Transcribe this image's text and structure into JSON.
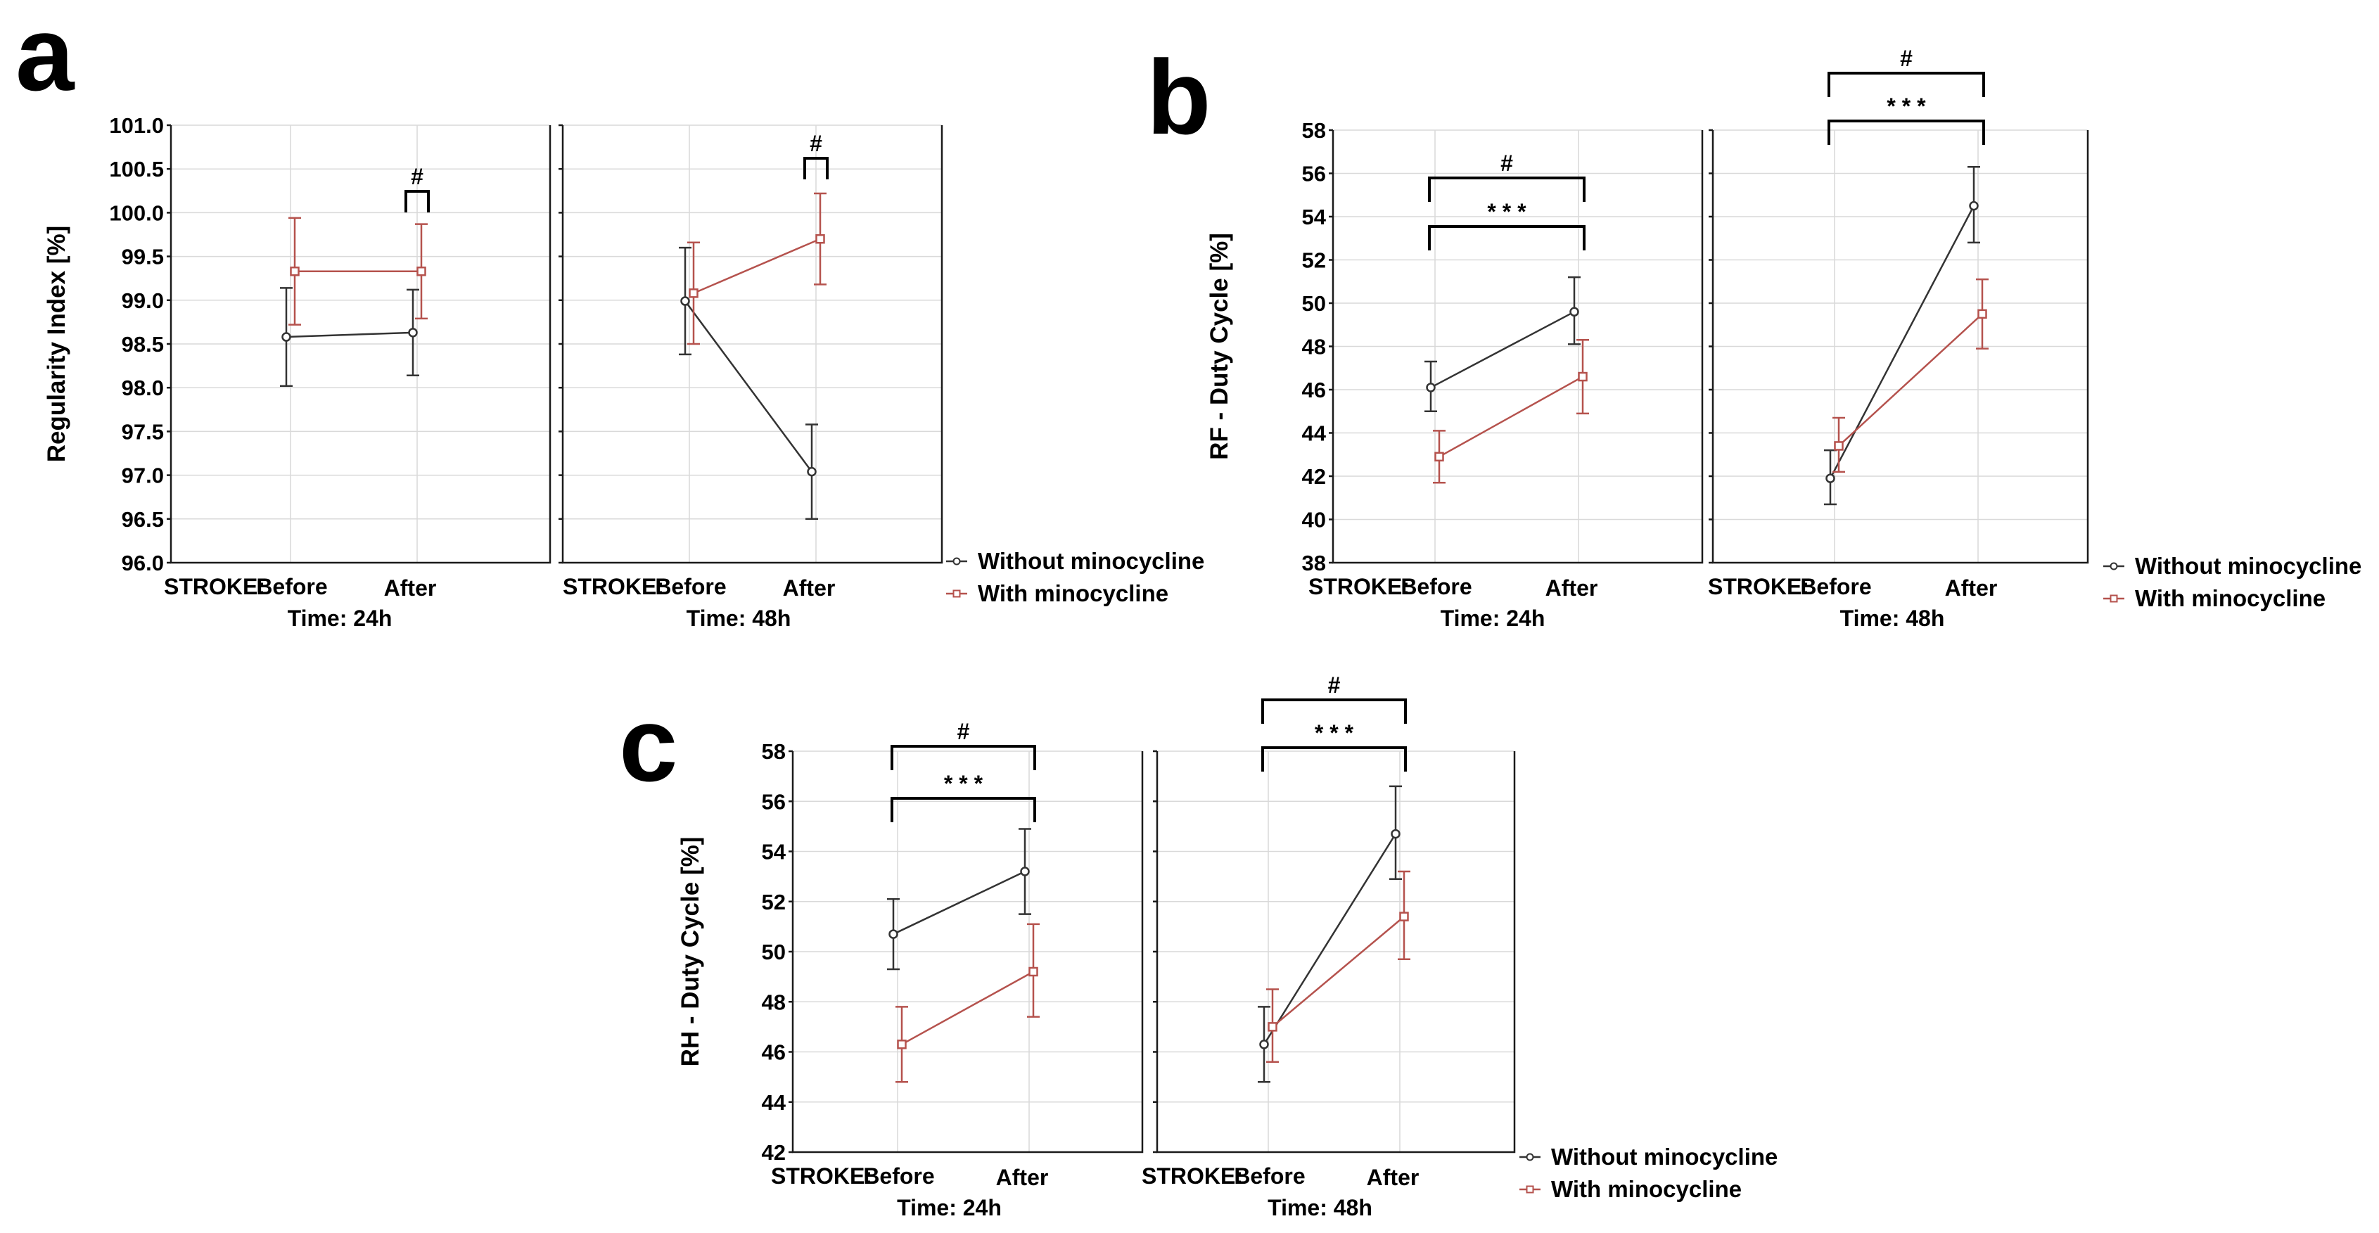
{
  "legend": {
    "series": [
      {
        "name": "Without minocycline",
        "color": "#333333"
      },
      {
        "name": "With minocycline",
        "color": "#b5524d"
      }
    ]
  },
  "chart_data": [
    {
      "panel": "a",
      "type": "line",
      "ylabel": "Regularity Index [%]",
      "ylim": [
        96.0,
        101.0
      ],
      "yticks": [
        "96.0",
        "96.5",
        "97.0",
        "97.5",
        "98.0",
        "98.5",
        "99.0",
        "99.5",
        "100.0",
        "100.5",
        "101.0"
      ],
      "grid": true,
      "facet_prefix": "STROKE:",
      "categories": [
        "Before",
        "After"
      ],
      "facets": [
        {
          "title": "Time: 24h",
          "series": [
            {
              "name": "Without minocycline",
              "values": [
                98.58,
                98.63
              ],
              "lower": [
                98.02,
                98.14
              ],
              "upper": [
                99.14,
                99.12
              ]
            },
            {
              "name": "With minocycline",
              "values": [
                99.33,
                99.33
              ],
              "lower": [
                98.72,
                98.79
              ],
              "upper": [
                99.94,
                99.87
              ]
            }
          ],
          "annotations": [
            {
              "label": "#"
            }
          ]
        },
        {
          "title": "Time: 48h",
          "series": [
            {
              "name": "Without minocycline",
              "values": [
                98.99,
                97.04
              ],
              "lower": [
                98.38,
                96.5
              ],
              "upper": [
                99.6,
                97.58
              ]
            },
            {
              "name": "With minocycline",
              "values": [
                99.08,
                99.7
              ],
              "lower": [
                98.5,
                99.18
              ],
              "upper": [
                99.66,
                100.22
              ]
            }
          ],
          "annotations": [
            {
              "label": "#"
            }
          ]
        }
      ]
    },
    {
      "panel": "b",
      "type": "line",
      "ylabel": "RF - Duty Cycle [%]",
      "ylim": [
        38,
        58
      ],
      "yticks": [
        "38",
        "40",
        "42",
        "44",
        "46",
        "48",
        "50",
        "52",
        "54",
        "56",
        "58"
      ],
      "grid": true,
      "facet_prefix": "STROKE:",
      "categories": [
        "Before",
        "After"
      ],
      "facets": [
        {
          "title": "Time: 24h",
          "series": [
            {
              "name": "Without minocycline",
              "values": [
                46.1,
                49.6
              ],
              "lower": [
                45.0,
                48.1
              ],
              "upper": [
                47.3,
                51.2
              ]
            },
            {
              "name": "With minocycline",
              "values": [
                42.9,
                46.6
              ],
              "lower": [
                41.7,
                44.9
              ],
              "upper": [
                44.1,
                48.3
              ]
            }
          ],
          "annotations": [
            {
              "label": "#"
            },
            {
              "label": "* * *"
            }
          ]
        },
        {
          "title": "Time: 48h",
          "series": [
            {
              "name": "Without minocycline",
              "values": [
                41.9,
                54.5
              ],
              "lower": [
                40.7,
                52.8
              ],
              "upper": [
                43.2,
                56.3
              ]
            },
            {
              "name": "With minocycline",
              "values": [
                43.4,
                49.5
              ],
              "lower": [
                42.2,
                47.9
              ],
              "upper": [
                44.7,
                51.1
              ]
            }
          ],
          "annotations": [
            {
              "label": "#"
            },
            {
              "label": "* * *"
            }
          ]
        }
      ]
    },
    {
      "panel": "c",
      "type": "line",
      "ylabel": "RH - Duty Cycle [%]",
      "ylim": [
        42,
        58
      ],
      "yticks": [
        "42",
        "44",
        "46",
        "48",
        "50",
        "52",
        "54",
        "56",
        "58"
      ],
      "grid": true,
      "facet_prefix": "STROKE:",
      "categories": [
        "Before",
        "After"
      ],
      "facets": [
        {
          "title": "Time: 24h",
          "series": [
            {
              "name": "Without minocycline",
              "values": [
                50.7,
                53.2
              ],
              "lower": [
                49.3,
                51.5
              ],
              "upper": [
                52.1,
                54.9
              ]
            },
            {
              "name": "With minocycline",
              "values": [
                46.3,
                49.2
              ],
              "lower": [
                44.8,
                47.4
              ],
              "upper": [
                47.8,
                51.1
              ]
            }
          ],
          "annotations": [
            {
              "label": "#"
            },
            {
              "label": "* * *"
            }
          ]
        },
        {
          "title": "Time: 48h",
          "series": [
            {
              "name": "Without minocycline",
              "values": [
                46.3,
                54.7
              ],
              "lower": [
                44.8,
                52.9
              ],
              "upper": [
                47.8,
                56.6
              ]
            },
            {
              "name": "With minocycline",
              "values": [
                47.0,
                51.4
              ],
              "lower": [
                45.6,
                49.7
              ],
              "upper": [
                48.5,
                53.2
              ]
            }
          ],
          "annotations": [
            {
              "label": "#"
            },
            {
              "label": "* * *"
            }
          ]
        }
      ]
    }
  ]
}
